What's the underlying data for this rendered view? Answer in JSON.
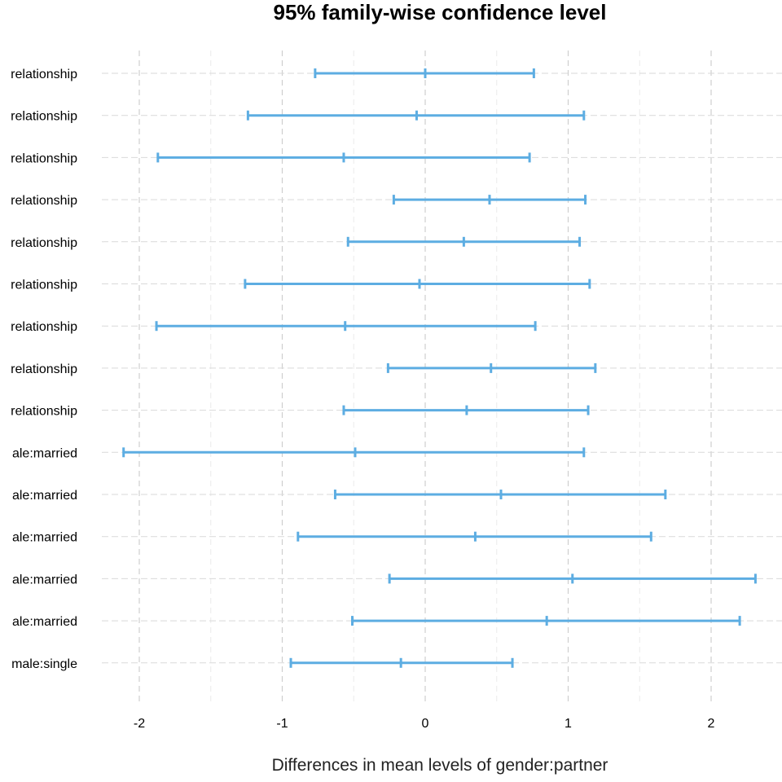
{
  "chart_data": {
    "type": "errorbar",
    "title": "95% family-wise confidence level",
    "xlabel": "Differences in mean levels of gender:partner",
    "ylabel": "",
    "xlim": [
      -2.4,
      2.4
    ],
    "x_ticks": [
      -2,
      -1,
      0,
      1,
      2
    ],
    "x_tick_labels": [
      "-2",
      "-1",
      "0",
      "1",
      "2"
    ],
    "grid": true,
    "color": "#5DADE2",
    "comparisons": [
      {
        "label": "relationship",
        "lwr": -0.77,
        "estimate": 0.0,
        "upr": 0.76
      },
      {
        "label": "relationship",
        "lwr": -1.24,
        "estimate": -0.06,
        "upr": 1.11
      },
      {
        "label": "relationship",
        "lwr": -1.87,
        "estimate": -0.57,
        "upr": 0.73
      },
      {
        "label": "relationship",
        "lwr": -0.22,
        "estimate": 0.45,
        "upr": 1.12
      },
      {
        "label": "relationship",
        "lwr": -0.54,
        "estimate": 0.27,
        "upr": 1.08
      },
      {
        "label": "relationship",
        "lwr": -1.26,
        "estimate": -0.04,
        "upr": 1.15
      },
      {
        "label": "relationship",
        "lwr": -1.88,
        "estimate": -0.56,
        "upr": 0.77
      },
      {
        "label": "relationship",
        "lwr": -0.26,
        "estimate": 0.46,
        "upr": 1.19
      },
      {
        "label": "relationship",
        "lwr": -0.57,
        "estimate": 0.29,
        "upr": 1.14
      },
      {
        "label": "ale:married",
        "lwr": -2.11,
        "estimate": -0.49,
        "upr": 1.11
      },
      {
        "label": "ale:married",
        "lwr": -0.63,
        "estimate": 0.53,
        "upr": 1.68
      },
      {
        "label": "ale:married",
        "lwr": -0.89,
        "estimate": 0.35,
        "upr": 1.58
      },
      {
        "label": "ale:married",
        "lwr": -0.25,
        "estimate": 1.03,
        "upr": 2.31
      },
      {
        "label": "ale:married",
        "lwr": -0.51,
        "estimate": 0.85,
        "upr": 2.2
      },
      {
        "label": "male:single",
        "lwr": -0.94,
        "estimate": -0.17,
        "upr": 0.61
      }
    ]
  }
}
